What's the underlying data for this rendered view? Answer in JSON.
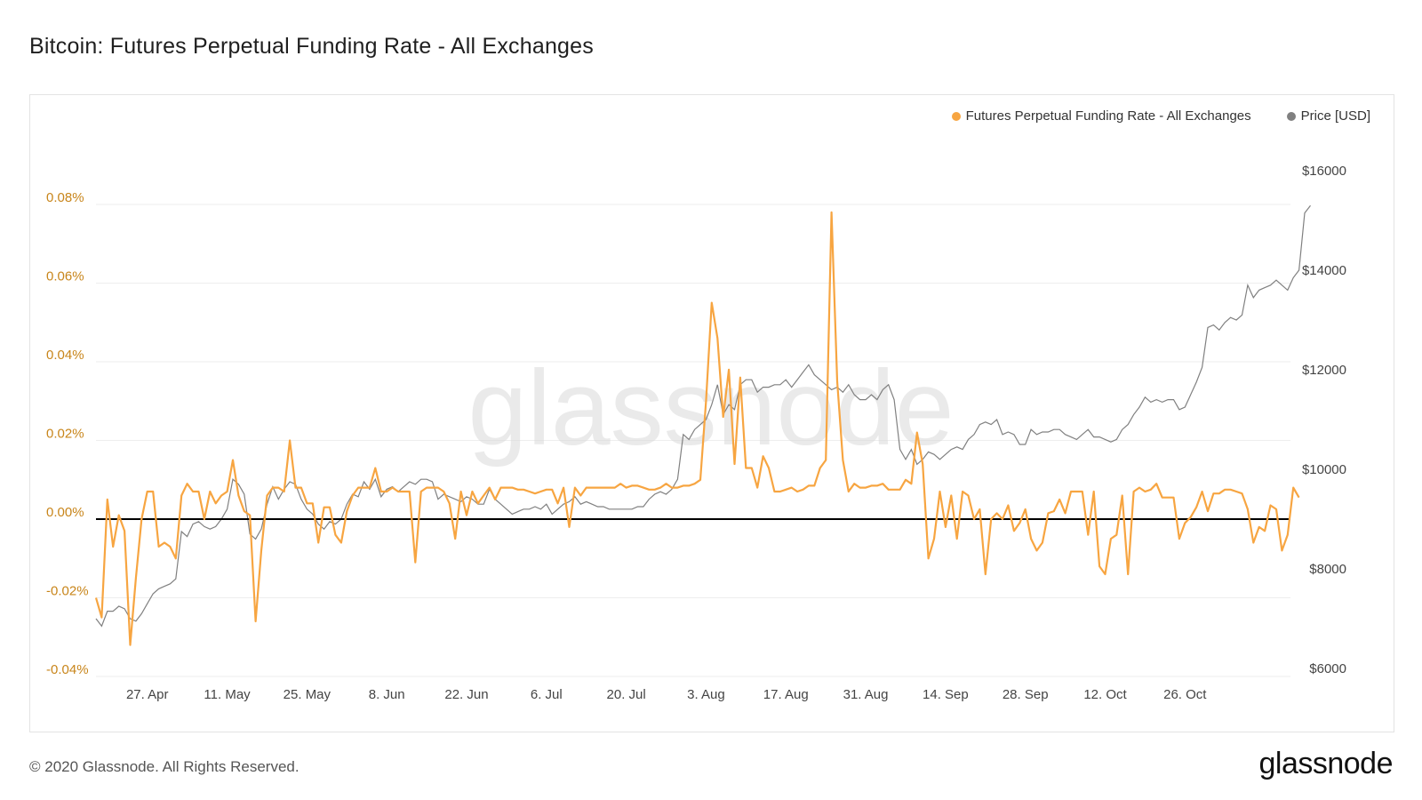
{
  "page": {
    "title": "Bitcoin: Futures Perpetual Funding Rate - All Exchanges",
    "footer": "© 2020 Glassnode. All Rights Reserved.",
    "brand": "glassnode",
    "watermark": "glassnode"
  },
  "colors": {
    "funding": "#f7a541",
    "price": "#808080",
    "left_axis_text": "#c8851a",
    "zero_line": "#000000",
    "grid": "#eeeeee"
  },
  "chart_data": {
    "type": "line",
    "title": "Bitcoin: Futures Perpetual Funding Rate - All Exchanges",
    "x_ticks": [
      "27. Apr",
      "11. May",
      "25. May",
      "8. Jun",
      "22. Jun",
      "6. Jul",
      "20. Jul",
      "3. Aug",
      "17. Aug",
      "31. Aug",
      "14. Sep",
      "28. Sep",
      "12. Oct",
      "26. Oct"
    ],
    "y_left": {
      "ticks": [
        "-0.04%",
        "-0.02%",
        "0.00%",
        "0.02%",
        "0.04%",
        "0.06%",
        "0.08%"
      ],
      "values": [
        -0.04,
        -0.02,
        0,
        0.02,
        0.04,
        0.06,
        0.08
      ],
      "ylim": [
        -0.04,
        0.08
      ]
    },
    "y_right": {
      "ticks": [
        "$6000",
        "$8000",
        "$10000",
        "$12000",
        "$14000",
        "$16000"
      ],
      "values": [
        6000,
        8000,
        10000,
        12000,
        14000,
        16000
      ],
      "ylim": [
        6000,
        16000
      ]
    },
    "series": [
      {
        "name": "Futures Perpetual Funding Rate - All Exchanges",
        "axis": "left",
        "x_day_start": "2020-04-18",
        "values": [
          -0.02,
          -0.025,
          0.005,
          -0.007,
          0.001,
          -0.003,
          -0.032,
          -0.015,
          0.0,
          0.007,
          0.007,
          -0.007,
          -0.006,
          -0.007,
          -0.01,
          0.006,
          0.009,
          0.007,
          0.007,
          0.0,
          0.007,
          0.004,
          0.006,
          0.007,
          0.015,
          0.006,
          0.002,
          0.001,
          -0.026,
          -0.008,
          0.006,
          0.008,
          0.008,
          0.007,
          0.02,
          0.008,
          0.008,
          0.004,
          0.004,
          -0.006,
          0.003,
          0.003,
          -0.004,
          -0.006,
          0.002,
          0.006,
          0.008,
          0.008,
          0.008,
          0.013,
          0.007,
          0.007,
          0.008,
          0.007,
          0.007,
          0.007,
          -0.011,
          0.007,
          0.008,
          0.008,
          0.008,
          0.007,
          0.004,
          -0.005,
          0.007,
          0.001,
          0.007,
          0.004,
          0.006,
          0.008,
          0.005,
          0.008,
          0.008,
          0.008,
          0.0075,
          0.0075,
          0.007,
          0.0065,
          0.007,
          0.0075,
          0.0075,
          0.004,
          0.008,
          -0.002,
          0.008,
          0.006,
          0.008,
          0.008,
          0.008,
          0.008,
          0.008,
          0.008,
          0.009,
          0.008,
          0.0085,
          0.0085,
          0.008,
          0.0075,
          0.0075,
          0.008,
          0.009,
          0.008,
          0.008,
          0.0085,
          0.0085,
          0.009,
          0.01,
          0.03,
          0.055,
          0.046,
          0.026,
          0.038,
          0.014,
          0.036,
          0.013,
          0.013,
          0.008,
          0.016,
          0.013,
          0.007,
          0.007,
          0.0075,
          0.008,
          0.007,
          0.0075,
          0.0085,
          0.0085,
          0.013,
          0.015,
          0.078,
          0.035,
          0.015,
          0.007,
          0.009,
          0.008,
          0.008,
          0.0085,
          0.0085,
          0.009,
          0.0075,
          0.0075,
          0.0075,
          0.01,
          0.009,
          0.022,
          0.014,
          -0.01,
          -0.005,
          0.007,
          -0.002,
          0.006,
          -0.005,
          0.007,
          0.006,
          0.0,
          0.0025,
          -0.014,
          0.0,
          0.0015,
          0.0,
          0.0035,
          -0.003,
          -0.001,
          0.0025,
          -0.005,
          -0.008,
          -0.006,
          0.0015,
          0.002,
          0.005,
          0.0015,
          0.007,
          0.007,
          0.007,
          -0.004,
          0.007,
          -0.012,
          -0.014,
          -0.005,
          -0.004,
          0.006,
          -0.014,
          0.007,
          0.008,
          0.007,
          0.0075,
          0.009,
          0.0055,
          0.0055,
          0.0055,
          -0.005,
          -0.001,
          0.0005,
          0.003,
          0.007,
          0.002,
          0.0065,
          0.0065,
          0.0075,
          0.0075,
          0.007,
          0.0065,
          0.0025,
          -0.006,
          -0.002,
          -0.003,
          0.0035,
          0.0025,
          -0.008,
          -0.004,
          0.008,
          0.0055
        ]
      },
      {
        "name": "Price [USD]",
        "axis": "right",
        "x_day_start": "2020-04-18",
        "values": [
          7000,
          6850,
          7150,
          7150,
          7250,
          7200,
          7000,
          6950,
          7100,
          7300,
          7500,
          7600,
          7650,
          7700,
          7800,
          8750,
          8650,
          8900,
          8950,
          8850,
          8800,
          8850,
          9000,
          9200,
          9800,
          9700,
          9500,
          8700,
          8600,
          8800,
          9300,
          9650,
          9400,
          9600,
          9750,
          9700,
          9400,
          9200,
          9100,
          8900,
          8800,
          8950,
          8900,
          9000,
          9300,
          9500,
          9450,
          9750,
          9600,
          9800,
          9450,
          9600,
          9650,
          9550,
          9650,
          9750,
          9700,
          9800,
          9800,
          9750,
          9400,
          9500,
          9450,
          9400,
          9350,
          9450,
          9400,
          9300,
          9300,
          9600,
          9400,
          9300,
          9200,
          9100,
          9150,
          9200,
          9200,
          9250,
          9200,
          9300,
          9100,
          9200,
          9300,
          9350,
          9450,
          9300,
          9350,
          9300,
          9250,
          9250,
          9200,
          9200,
          9200,
          9200,
          9200,
          9250,
          9250,
          9400,
          9500,
          9550,
          9500,
          9600,
          9800,
          10700,
          10600,
          10800,
          10900,
          11000,
          11300,
          11700,
          11100,
          11300,
          11200,
          11700,
          11800,
          11800,
          11550,
          11650,
          11650,
          11700,
          11700,
          11800,
          11650,
          11800,
          11950,
          12100,
          11900,
          11800,
          11700,
          11600,
          11650,
          11550,
          11700,
          11500,
          11400,
          11400,
          11500,
          11400,
          11600,
          11700,
          11400,
          10400,
          10200,
          10400,
          10100,
          10200,
          10350,
          10300,
          10200,
          10300,
          10400,
          10450,
          10400,
          10600,
          10700,
          10900,
          10950,
          10900,
          11000,
          10700,
          10750,
          10700,
          10500,
          10500,
          10800,
          10700,
          10750,
          10750,
          10800,
          10800,
          10700,
          10650,
          10600,
          10700,
          10800,
          10650,
          10650,
          10600,
          10550,
          10600,
          10800,
          10900,
          11100,
          11250,
          11450,
          11350,
          11400,
          11350,
          11400,
          11400,
          11200,
          11250,
          11500,
          11750,
          12050,
          12850,
          12900,
          12800,
          12950,
          13050,
          13000,
          13100,
          13700,
          13450,
          13600,
          13650,
          13700,
          13800,
          13700,
          13600,
          13850,
          14000,
          15150,
          15300
        ]
      }
    ],
    "legend": [
      "Futures Perpetual Funding Rate - All Exchanges",
      "Price [USD]"
    ],
    "legend_position": "top-right",
    "grid": true
  }
}
